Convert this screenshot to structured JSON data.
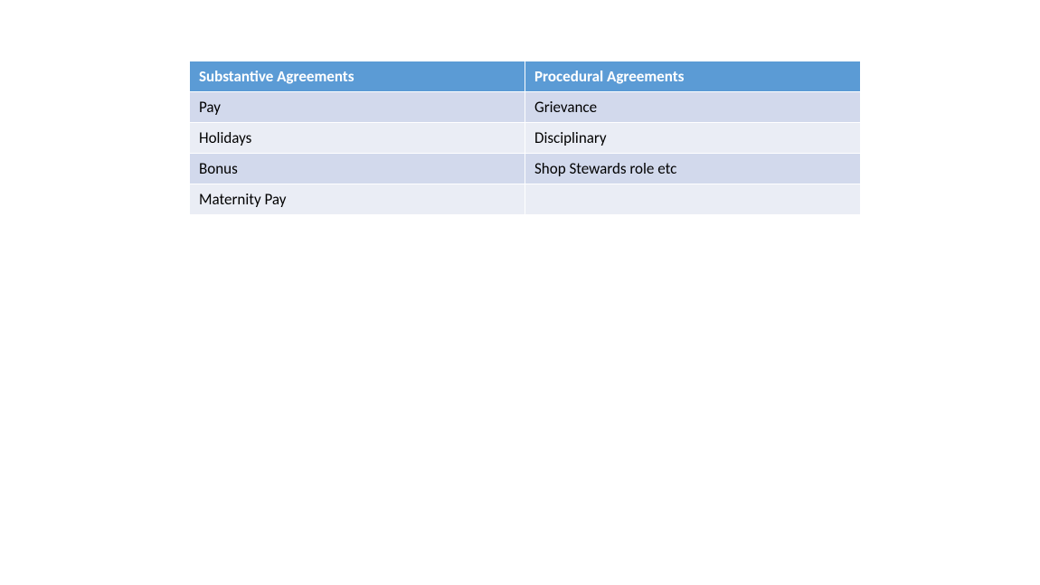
{
  "table": {
    "type": "table",
    "columns": [
      {
        "label": "Substantive Agreements",
        "width": "50%"
      },
      {
        "label": "Procedural Agreements",
        "width": "50%"
      }
    ],
    "rows": [
      [
        "Pay",
        "Grievance"
      ],
      [
        "Holidays",
        "Disciplinary"
      ],
      [
        "Bonus",
        "Shop Stewards role etc"
      ],
      [
        "Maternity Pay",
        ""
      ]
    ],
    "header_bg_color": "#5b9bd5",
    "header_text_color": "#ffffff",
    "row_colors": [
      "#d2d9ec",
      "#eaedf5"
    ],
    "border_color": "#ffffff",
    "header_fontsize": 17,
    "cell_fontsize": 17,
    "header_font_weight": "bold",
    "background_color": "#ffffff"
  }
}
